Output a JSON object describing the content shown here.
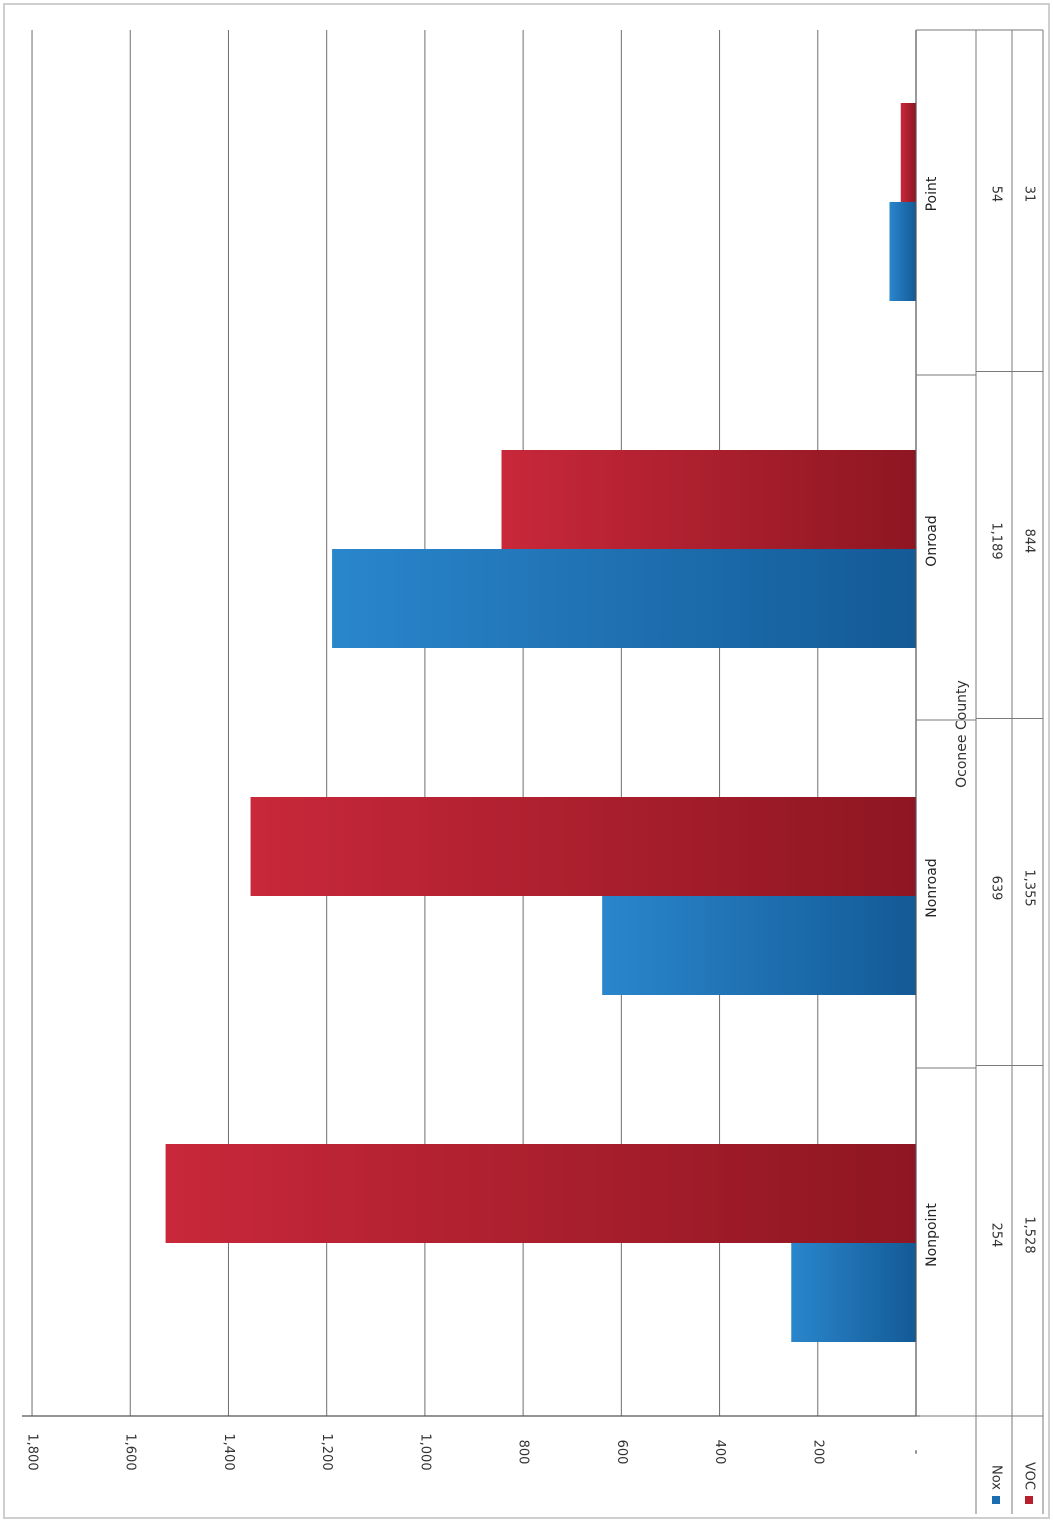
{
  "chart_data": {
    "type": "bar",
    "orientation": "vertical (image rotated 90° clockwise)",
    "categories": [
      "Nonpoint",
      "Nonroad",
      "Onroad",
      "Point"
    ],
    "series": [
      {
        "name": "Nox",
        "color": "#1a6db0",
        "values": [
          254,
          639,
          1189,
          54
        ],
        "value_labels": [
          "254",
          "639",
          "1,189",
          "54"
        ]
      },
      {
        "name": "VOC",
        "color": "#b81f2c",
        "values": [
          1528,
          1355,
          844,
          31
        ],
        "value_labels": [
          "1,528",
          "1,355",
          "844",
          "31"
        ]
      }
    ],
    "xlabel": "Oconee County",
    "ylabel": "",
    "ylim": [
      0,
      1800
    ],
    "yticks": [
      0,
      200,
      400,
      600,
      800,
      1000,
      1200,
      1400,
      1600,
      1800
    ],
    "ytick_labels": [
      "-",
      "200",
      "400",
      "600",
      "800",
      "1,000",
      "1,200",
      "1,400",
      "1,600",
      "1,800"
    ],
    "grid": true,
    "legend": "data table"
  }
}
